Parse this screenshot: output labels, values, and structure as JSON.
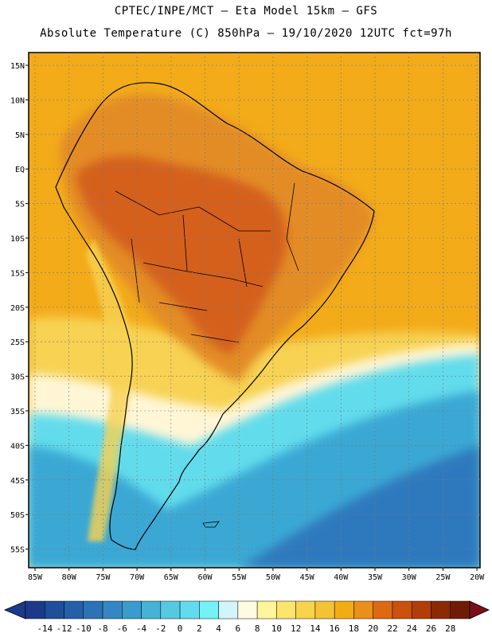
{
  "title_line1": "CPTEC/INPE/MCT –  Eta Model 15km – GFS",
  "title_line2": "Absolute Temperature (C) 850hPa – 19/10/2020 12UTC fct=97h",
  "lat_labels": [
    "15N",
    "10N",
    "5N",
    "EQ",
    "5S",
    "10S",
    "15S",
    "20S",
    "25S",
    "30S",
    "35S",
    "40S",
    "45S",
    "50S",
    "55S"
  ],
  "lon_labels": [
    "85W",
    "80W",
    "75W",
    "70W",
    "65W",
    "60W",
    "55W",
    "50W",
    "45W",
    "40W",
    "35W",
    "30W",
    "25W",
    "20W"
  ],
  "colorbar": {
    "labels": [
      "-14",
      "-12",
      "-10",
      "-8",
      "-6",
      "-4",
      "-2",
      "0",
      "2",
      "4",
      "6",
      "8",
      "10",
      "12",
      "14",
      "16",
      "18",
      "20",
      "22",
      "24",
      "26",
      "28"
    ],
    "colors": [
      "#1b3a8a",
      "#1f4f9a",
      "#2360a8",
      "#2b73b6",
      "#3487c2",
      "#3a9ccc",
      "#46b3d6",
      "#55c9e2",
      "#62dcec",
      "#74f2f8",
      "#d2f4fb",
      "#fffbe0",
      "#fff59a",
      "#fbe56c",
      "#f8d44e",
      "#f5c235",
      "#f2ad14",
      "#e8901a",
      "#dc6a12",
      "#c9520c",
      "#b13e08",
      "#8b2a05",
      "#6e1d04"
    ],
    "low_color": "#1b3a8a",
    "high_color": "#7a0f1a"
  },
  "colors": {
    "ocean_warm": "#f3ab1a",
    "land_hot": "#d4611f",
    "land_warm": "#e38c27",
    "cold_light": "#5fe1ee",
    "cold_mid": "#3aa8d4",
    "cold_deep": "#2f79bd",
    "yellow": "#f7d252",
    "cream": "#fff6d6"
  }
}
